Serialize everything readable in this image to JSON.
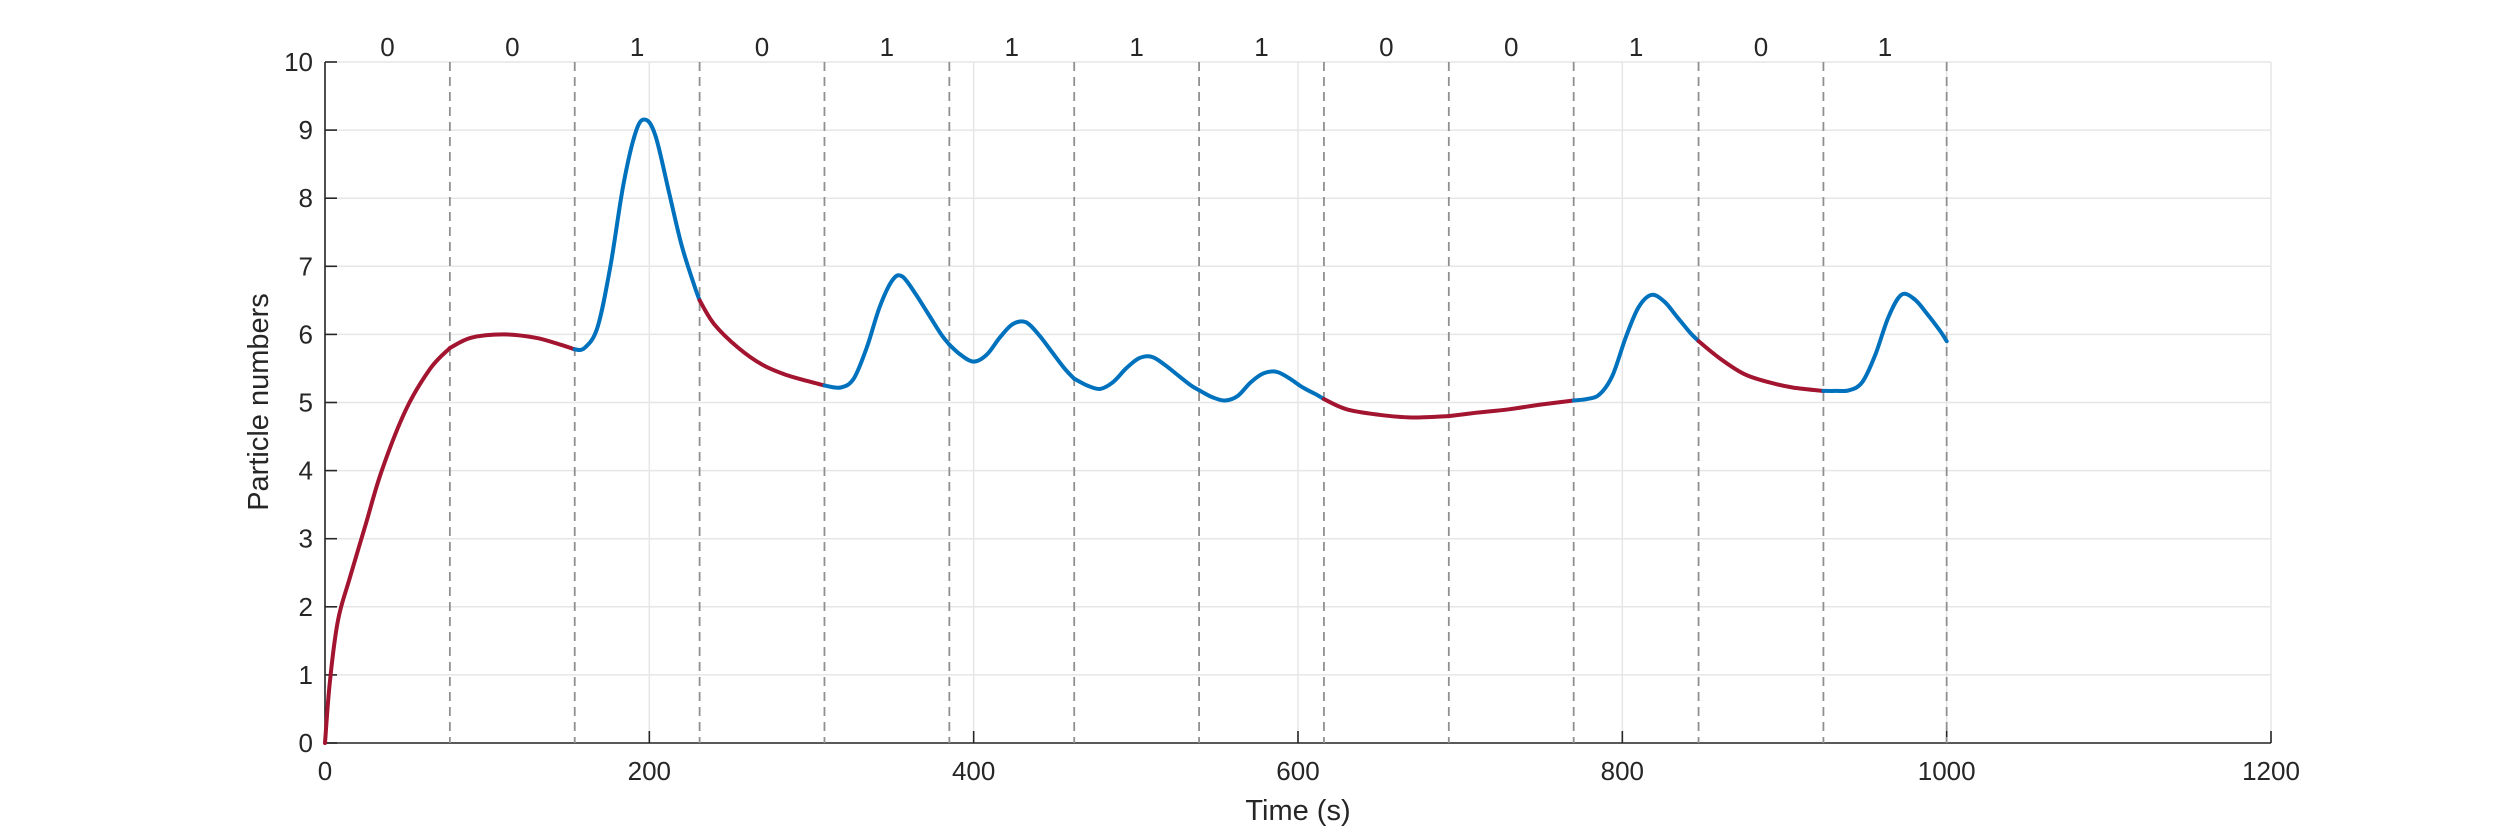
{
  "chart_data": {
    "type": "line",
    "title": "",
    "xlabel": "Time (s)",
    "ylabel": "Particle numbers",
    "xlim": [
      0,
      1200
    ],
    "ylim": [
      0,
      10
    ],
    "xticks": [
      0,
      200,
      400,
      600,
      800,
      1000,
      1200
    ],
    "yticks": [
      0,
      1,
      2,
      3,
      4,
      5,
      6,
      7,
      8,
      9,
      10
    ],
    "grid": true,
    "legend": "none",
    "colors": {
      "state_0": "#A2142F",
      "state_1": "#0072BD",
      "boundary": "#909090",
      "grid": "#e6e6e6",
      "axis": "#262626"
    },
    "segment_boundaries": [
      77,
      154,
      231,
      308,
      385,
      462,
      539,
      616,
      693,
      770,
      847,
      924,
      1000
    ],
    "segments": [
      {
        "label": "0",
        "x": [
          0,
          3,
          8,
          15,
          25,
          35,
          50,
          65,
          77
        ],
        "y": [
          0,
          0.9,
          1.8,
          2.4,
          3.2,
          4.0,
          4.9,
          5.5,
          5.8
        ]
      },
      {
        "label": "0",
        "x": [
          77,
          90,
          110,
          130,
          145,
          154
        ],
        "y": [
          5.8,
          5.95,
          6.0,
          5.95,
          5.85,
          5.78
        ]
      },
      {
        "label": "1",
        "x": [
          154,
          160,
          168,
          176,
          184,
          192,
          198,
          204,
          212,
          220,
          228,
          231
        ],
        "y": [
          5.78,
          5.8,
          6.1,
          7.0,
          8.2,
          9.0,
          9.15,
          8.9,
          8.1,
          7.3,
          6.7,
          6.5
        ]
      },
      {
        "label": "0",
        "x": [
          231,
          240,
          255,
          270,
          285,
          300,
          308
        ],
        "y": [
          6.5,
          6.15,
          5.8,
          5.55,
          5.4,
          5.3,
          5.25
        ]
      },
      {
        "label": "1",
        "x": [
          308,
          318,
          326,
          334,
          342,
          350,
          356,
          364,
          372,
          380,
          385
        ],
        "y": [
          5.25,
          5.22,
          5.35,
          5.8,
          6.4,
          6.8,
          6.85,
          6.6,
          6.3,
          6.0,
          5.85
        ]
      },
      {
        "label": "1",
        "x": [
          385,
          392,
          400,
          408,
          416,
          424,
          432,
          440,
          448,
          456,
          462
        ],
        "y": [
          5.85,
          5.7,
          5.6,
          5.7,
          5.95,
          6.15,
          6.18,
          6.0,
          5.75,
          5.5,
          5.35
        ]
      },
      {
        "label": "1",
        "x": [
          462,
          470,
          478,
          486,
          494,
          502,
          510,
          518,
          526,
          534,
          539
        ],
        "y": [
          5.35,
          5.25,
          5.2,
          5.3,
          5.5,
          5.65,
          5.67,
          5.55,
          5.4,
          5.25,
          5.18
        ]
      },
      {
        "label": "1",
        "x": [
          539,
          547,
          555,
          563,
          571,
          579,
          587,
          595,
          603,
          611,
          616
        ],
        "y": [
          5.18,
          5.08,
          5.03,
          5.1,
          5.3,
          5.43,
          5.45,
          5.35,
          5.22,
          5.12,
          5.05
        ]
      },
      {
        "label": "0",
        "x": [
          616,
          630,
          650,
          670,
          693
        ],
        "y": [
          5.05,
          4.9,
          4.82,
          4.78,
          4.8
        ]
      },
      {
        "label": "0",
        "x": [
          693,
          710,
          730,
          750,
          770
        ],
        "y": [
          4.8,
          4.85,
          4.9,
          4.97,
          5.03
        ]
      },
      {
        "label": "1",
        "x": [
          770,
          778,
          786,
          794,
          802,
          810,
          818,
          826,
          834,
          842,
          847
        ],
        "y": [
          5.03,
          5.05,
          5.12,
          5.4,
          5.95,
          6.4,
          6.58,
          6.48,
          6.25,
          6.02,
          5.9
        ]
      },
      {
        "label": "0",
        "x": [
          847,
          860,
          875,
          890,
          905,
          924
        ],
        "y": [
          5.9,
          5.65,
          5.42,
          5.3,
          5.22,
          5.17
        ]
      },
      {
        "label": "1",
        "x": [
          924,
          932,
          940,
          948,
          956,
          964,
          972,
          980,
          988,
          996,
          1000
        ],
        "y": [
          5.17,
          5.17,
          5.18,
          5.3,
          5.7,
          6.25,
          6.58,
          6.52,
          6.3,
          6.05,
          5.9
        ]
      }
    ]
  }
}
